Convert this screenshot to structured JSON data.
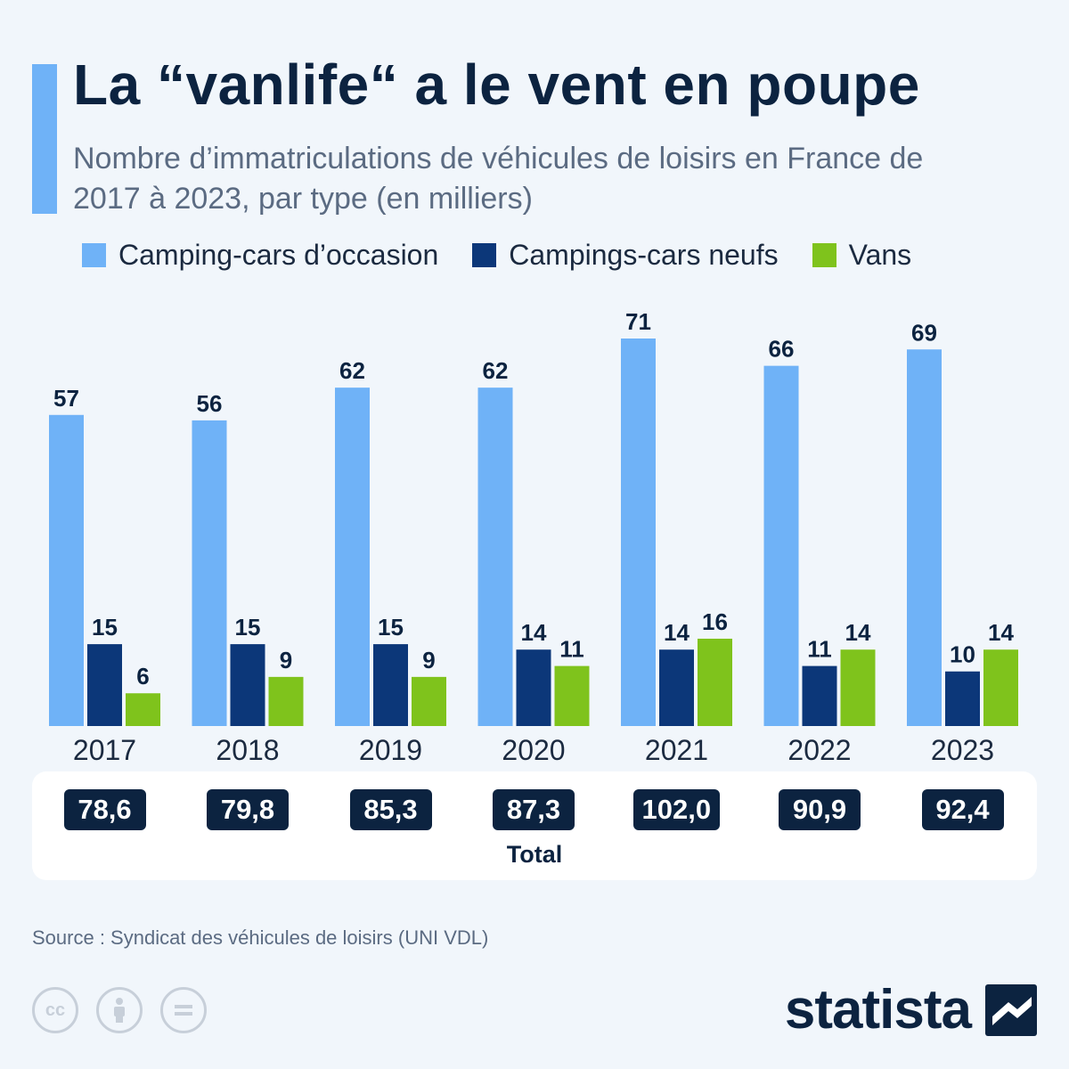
{
  "header": {
    "title": "La “vanlife“ a le vent en poupe",
    "subtitle": "Nombre d’immatriculations de véhicules de loisirs en France de 2017 à 2023, par type (en milliers)"
  },
  "colors": {
    "accent": "#6fb2f7",
    "used": "#6fb2f7",
    "new": "#0c3779",
    "vans": "#7fc31c",
    "navy": "#0c2340",
    "background": "#f1f6fb"
  },
  "chart_data": {
    "type": "bar",
    "title": "La “vanlife“ a le vent en poupe",
    "subtitle": "Nombre d’immatriculations de véhicules de loisirs en France de 2017 à 2023, par type (en milliers)",
    "categories": [
      "2017",
      "2018",
      "2019",
      "2020",
      "2021",
      "2022",
      "2023"
    ],
    "series": [
      {
        "name": "Camping-cars d’occasion",
        "color": "#6fb2f7",
        "values": [
          57,
          56,
          62,
          62,
          71,
          66,
          69
        ]
      },
      {
        "name": "Campings-cars neufs",
        "color": "#0c3779",
        "values": [
          15,
          15,
          15,
          14,
          14,
          11,
          10
        ]
      },
      {
        "name": "Vans",
        "color": "#7fc31c",
        "values": [
          6,
          9,
          9,
          11,
          16,
          14,
          14
        ]
      }
    ],
    "totals": [
      "78,6",
      "79,8",
      "85,3",
      "87,3",
      "102,0",
      "90,9",
      "92,4"
    ],
    "totals_label": "Total",
    "ylim": [
      0,
      71
    ],
    "legend_position": "top",
    "grid": false
  },
  "footer": {
    "source": "Source : Syndicat des véhicules de loisirs (UNI VDL)",
    "brand": "statista",
    "license_icons": [
      "cc-icon",
      "attribution-icon",
      "no-derivatives-icon"
    ]
  }
}
